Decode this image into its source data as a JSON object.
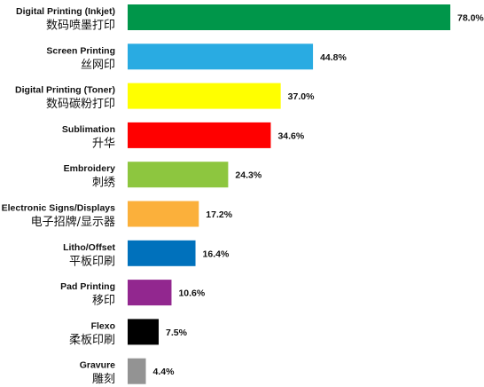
{
  "chart_data": {
    "type": "bar",
    "orientation": "horizontal",
    "categories": [
      {
        "en": "Digital Printing (Inkjet)",
        "zh": "数码喷墨打印"
      },
      {
        "en": "Screen Printing",
        "zh": "丝网印"
      },
      {
        "en": "Digital Printing (Toner)",
        "zh": "数码碳粉打印"
      },
      {
        "en": "Sublimation",
        "zh": "升华"
      },
      {
        "en": "Embroidery",
        "zh": "刺绣"
      },
      {
        "en": "Electronic Signs/Displays",
        "zh": "电子招牌/显示器"
      },
      {
        "en": "Litho/Offset",
        "zh": "平板印刷"
      },
      {
        "en": "Pad Printing",
        "zh": "移印"
      },
      {
        "en": "Flexo",
        "zh": "柔板印刷"
      },
      {
        "en": "Gravure",
        "zh": "雕刻"
      }
    ],
    "values": [
      78.0,
      44.8,
      37.0,
      34.6,
      24.3,
      17.2,
      16.4,
      10.6,
      7.5,
      4.4
    ],
    "value_labels": [
      "78.0%",
      "44.8%",
      "37.0%",
      "34.6%",
      "24.3%",
      "17.2%",
      "16.4%",
      "10.6%",
      "7.5%",
      "4.4%"
    ],
    "colors": [
      "#00964a",
      "#29abe2",
      "#ffff00",
      "#ff0000",
      "#8dc63f",
      "#fbb03b",
      "#0071bc",
      "#92278f",
      "#000000",
      "#939393"
    ],
    "xlim": [
      0,
      78.0
    ],
    "grid": false,
    "legend": "none"
  }
}
